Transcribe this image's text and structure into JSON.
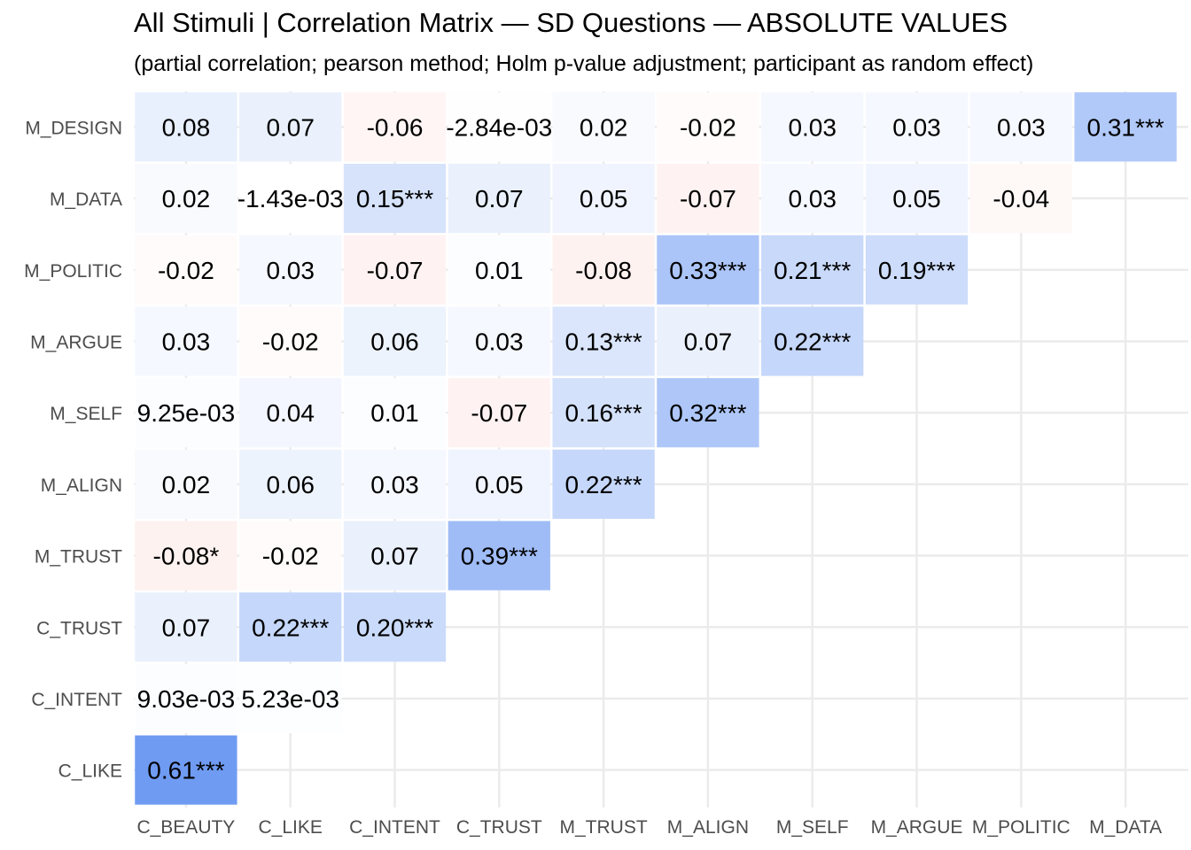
{
  "title": "All Stimuli | Correlation Matrix — SD Questions — ABSOLUTE VALUES",
  "subtitle": "(partial correlation; pearson method; Holm p-value adjustment; participant as random effect)",
  "colors": {
    "positive": "#6f9bf2",
    "negative": "#f7a8a0",
    "neutral": "#ffffff",
    "grid": "#ebebeb"
  },
  "chart_data": {
    "type": "heatmap",
    "title": "All Stimuli | Correlation Matrix — SD Questions — ABSOLUTE VALUES",
    "subtitle": "(partial correlation; pearson method; Holm p-value adjustment; participant as random effect)",
    "x_categories": [
      "C_BEAUTY",
      "C_LIKE",
      "C_INTENT",
      "C_TRUST",
      "M_TRUST",
      "M_ALIGN",
      "M_SELF",
      "M_ARGUE",
      "M_POLITIC",
      "M_DATA"
    ],
    "y_categories": [
      "M_DESIGN",
      "M_DATA",
      "M_POLITIC",
      "M_ARGUE",
      "M_SELF",
      "M_ALIGN",
      "M_TRUST",
      "C_TRUST",
      "C_INTENT",
      "C_LIKE"
    ],
    "grid": true,
    "legend": "none",
    "cells": [
      {
        "y": "M_DESIGN",
        "x": "C_BEAUTY",
        "value": 0.08,
        "label": "0.08"
      },
      {
        "y": "M_DESIGN",
        "x": "C_LIKE",
        "value": 0.07,
        "label": "0.07"
      },
      {
        "y": "M_DESIGN",
        "x": "C_INTENT",
        "value": -0.06,
        "label": "-0.06"
      },
      {
        "y": "M_DESIGN",
        "x": "C_TRUST",
        "value": -0.00284,
        "label": "-2.84e-03"
      },
      {
        "y": "M_DESIGN",
        "x": "M_TRUST",
        "value": 0.02,
        "label": "0.02"
      },
      {
        "y": "M_DESIGN",
        "x": "M_ALIGN",
        "value": -0.02,
        "label": "-0.02"
      },
      {
        "y": "M_DESIGN",
        "x": "M_SELF",
        "value": 0.03,
        "label": "0.03"
      },
      {
        "y": "M_DESIGN",
        "x": "M_ARGUE",
        "value": 0.03,
        "label": "0.03"
      },
      {
        "y": "M_DESIGN",
        "x": "M_POLITIC",
        "value": 0.03,
        "label": "0.03"
      },
      {
        "y": "M_DESIGN",
        "x": "M_DATA",
        "value": 0.31,
        "label": "0.31***"
      },
      {
        "y": "M_DATA",
        "x": "C_BEAUTY",
        "value": 0.02,
        "label": "0.02"
      },
      {
        "y": "M_DATA",
        "x": "C_LIKE",
        "value": -0.00143,
        "label": "-1.43e-03"
      },
      {
        "y": "M_DATA",
        "x": "C_INTENT",
        "value": 0.15,
        "label": "0.15***"
      },
      {
        "y": "M_DATA",
        "x": "C_TRUST",
        "value": 0.07,
        "label": "0.07"
      },
      {
        "y": "M_DATA",
        "x": "M_TRUST",
        "value": 0.05,
        "label": "0.05"
      },
      {
        "y": "M_DATA",
        "x": "M_ALIGN",
        "value": -0.07,
        "label": "-0.07"
      },
      {
        "y": "M_DATA",
        "x": "M_SELF",
        "value": 0.03,
        "label": "0.03"
      },
      {
        "y": "M_DATA",
        "x": "M_ARGUE",
        "value": 0.05,
        "label": "0.05"
      },
      {
        "y": "M_DATA",
        "x": "M_POLITIC",
        "value": -0.04,
        "label": "-0.04"
      },
      {
        "y": "M_POLITIC",
        "x": "C_BEAUTY",
        "value": -0.02,
        "label": "-0.02"
      },
      {
        "y": "M_POLITIC",
        "x": "C_LIKE",
        "value": 0.03,
        "label": "0.03"
      },
      {
        "y": "M_POLITIC",
        "x": "C_INTENT",
        "value": -0.07,
        "label": "-0.07"
      },
      {
        "y": "M_POLITIC",
        "x": "C_TRUST",
        "value": 0.01,
        "label": "0.01"
      },
      {
        "y": "M_POLITIC",
        "x": "M_TRUST",
        "value": -0.08,
        "label": "-0.08"
      },
      {
        "y": "M_POLITIC",
        "x": "M_ALIGN",
        "value": 0.33,
        "label": "0.33***"
      },
      {
        "y": "M_POLITIC",
        "x": "M_SELF",
        "value": 0.21,
        "label": "0.21***"
      },
      {
        "y": "M_POLITIC",
        "x": "M_ARGUE",
        "value": 0.19,
        "label": "0.19***"
      },
      {
        "y": "M_ARGUE",
        "x": "C_BEAUTY",
        "value": 0.03,
        "label": "0.03"
      },
      {
        "y": "M_ARGUE",
        "x": "C_LIKE",
        "value": -0.02,
        "label": "-0.02"
      },
      {
        "y": "M_ARGUE",
        "x": "C_INTENT",
        "value": 0.06,
        "label": "0.06"
      },
      {
        "y": "M_ARGUE",
        "x": "C_TRUST",
        "value": 0.03,
        "label": "0.03"
      },
      {
        "y": "M_ARGUE",
        "x": "M_TRUST",
        "value": 0.13,
        "label": "0.13***"
      },
      {
        "y": "M_ARGUE",
        "x": "M_ALIGN",
        "value": 0.07,
        "label": "0.07"
      },
      {
        "y": "M_ARGUE",
        "x": "M_SELF",
        "value": 0.22,
        "label": "0.22***"
      },
      {
        "y": "M_SELF",
        "x": "C_BEAUTY",
        "value": 0.00925,
        "label": "9.25e-03"
      },
      {
        "y": "M_SELF",
        "x": "C_LIKE",
        "value": 0.04,
        "label": "0.04"
      },
      {
        "y": "M_SELF",
        "x": "C_INTENT",
        "value": 0.01,
        "label": "0.01"
      },
      {
        "y": "M_SELF",
        "x": "C_TRUST",
        "value": -0.07,
        "label": "-0.07"
      },
      {
        "y": "M_SELF",
        "x": "M_TRUST",
        "value": 0.16,
        "label": "0.16***"
      },
      {
        "y": "M_SELF",
        "x": "M_ALIGN",
        "value": 0.32,
        "label": "0.32***"
      },
      {
        "y": "M_ALIGN",
        "x": "C_BEAUTY",
        "value": 0.02,
        "label": "0.02"
      },
      {
        "y": "M_ALIGN",
        "x": "C_LIKE",
        "value": 0.06,
        "label": "0.06"
      },
      {
        "y": "M_ALIGN",
        "x": "C_INTENT",
        "value": 0.03,
        "label": "0.03"
      },
      {
        "y": "M_ALIGN",
        "x": "C_TRUST",
        "value": 0.05,
        "label": "0.05"
      },
      {
        "y": "M_ALIGN",
        "x": "M_TRUST",
        "value": 0.22,
        "label": "0.22***"
      },
      {
        "y": "M_TRUST",
        "x": "C_BEAUTY",
        "value": -0.08,
        "label": "-0.08*"
      },
      {
        "y": "M_TRUST",
        "x": "C_LIKE",
        "value": -0.02,
        "label": "-0.02"
      },
      {
        "y": "M_TRUST",
        "x": "C_INTENT",
        "value": 0.07,
        "label": "0.07"
      },
      {
        "y": "M_TRUST",
        "x": "C_TRUST",
        "value": 0.39,
        "label": "0.39***"
      },
      {
        "y": "C_TRUST",
        "x": "C_BEAUTY",
        "value": 0.07,
        "label": "0.07"
      },
      {
        "y": "C_TRUST",
        "x": "C_LIKE",
        "value": 0.22,
        "label": "0.22***"
      },
      {
        "y": "C_TRUST",
        "x": "C_INTENT",
        "value": 0.2,
        "label": "0.20***"
      },
      {
        "y": "C_INTENT",
        "x": "C_BEAUTY",
        "value": 0.00903,
        "label": "9.03e-03"
      },
      {
        "y": "C_INTENT",
        "x": "C_LIKE",
        "value": 0.00523,
        "label": "5.23e-03"
      },
      {
        "y": "C_LIKE",
        "x": "C_BEAUTY",
        "value": 0.61,
        "label": "0.61***"
      }
    ]
  }
}
